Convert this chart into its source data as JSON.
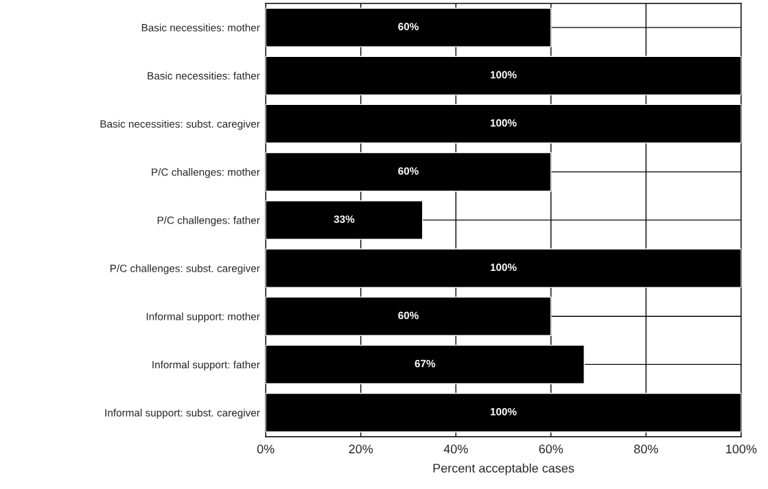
{
  "chart_data": {
    "type": "bar",
    "orientation": "horizontal",
    "xlabel": "Percent acceptable cases",
    "categories": [
      "Basic necessities: mother",
      "Basic necessities: father",
      "Basic necessities: subst. caregiver",
      "P/C challenges: mother",
      "P/C challenges: father",
      "P/C challenges: subst. caregiver",
      "Informal support: mother",
      "Informal support: father",
      "Informal support: subst. caregiver"
    ],
    "values": [
      60,
      100,
      100,
      60,
      33,
      100,
      60,
      67,
      100
    ],
    "value_labels": [
      "60%",
      "100%",
      "100%",
      "60%",
      "33%",
      "100%",
      "60%",
      "67%",
      "100%"
    ],
    "color": "#000000",
    "xlim": [
      0,
      100
    ],
    "xticks": [
      {
        "value": 0,
        "label": "0%"
      },
      {
        "value": 20,
        "label": "20%"
      },
      {
        "value": 40,
        "label": "40%"
      },
      {
        "value": 60,
        "label": "60%"
      },
      {
        "value": 80,
        "label": "80%"
      },
      {
        "value": 100,
        "label": "100%"
      }
    ],
    "grid": true,
    "legend": false
  }
}
